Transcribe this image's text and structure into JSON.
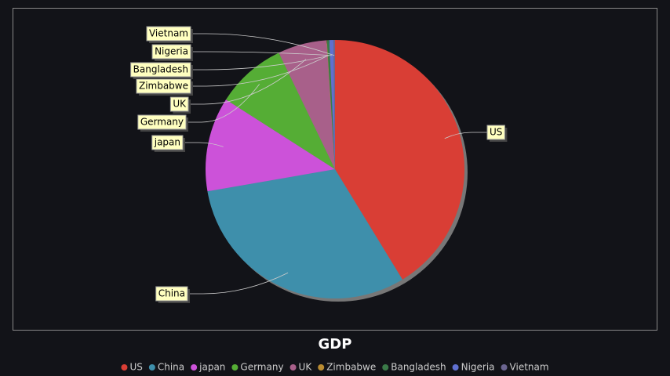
{
  "chart_data": {
    "type": "pie",
    "title": "GDP",
    "categories": [
      "US",
      "China",
      "japan",
      "Germany",
      "UK",
      "Zimbabwe",
      "Bangladesh",
      "Nigeria",
      "Vietnam"
    ],
    "values": [
      41.3,
      31,
      11.8,
      8.8,
      6.1,
      0.05,
      0.3,
      0.5,
      0.2
    ],
    "colors": [
      "#d93e35",
      "#3e8fab",
      "#cc52d9",
      "#55ad35",
      "#a8608a",
      "#b98c32",
      "#3a7a48",
      "#6070d0",
      "#6b6590"
    ],
    "legend": "bottom"
  }
}
